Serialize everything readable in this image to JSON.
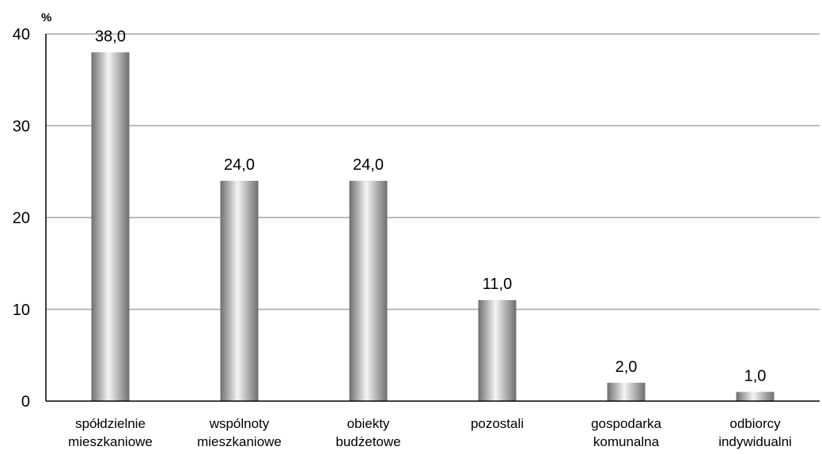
{
  "chart_data": {
    "type": "bar",
    "unit_label": "%",
    "categories": [
      [
        "spółdzielnie",
        "mieszkaniowe"
      ],
      [
        "wspólnoty",
        "mieszkaniowe"
      ],
      [
        "obiekty",
        "budżetowe"
      ],
      [
        "pozostali"
      ],
      [
        "gospodarka",
        "komunalna"
      ],
      [
        "odbiorcy",
        "indywidualni"
      ]
    ],
    "values": [
      38.0,
      24.0,
      24.0,
      11.0,
      2.0,
      1.0
    ],
    "data_labels": [
      "38,0",
      "24,0",
      "24,0",
      "11,0",
      "2,0",
      "1,0"
    ],
    "ylim": [
      0,
      40
    ],
    "yticks": [
      0,
      10,
      20,
      30,
      40
    ],
    "grid": true,
    "legend": "none",
    "colors": {
      "bar_dark": "#6e6e6e",
      "bar_light": "#f4f4f4",
      "grid": "#a6a6a6",
      "axis": "#000000"
    }
  }
}
